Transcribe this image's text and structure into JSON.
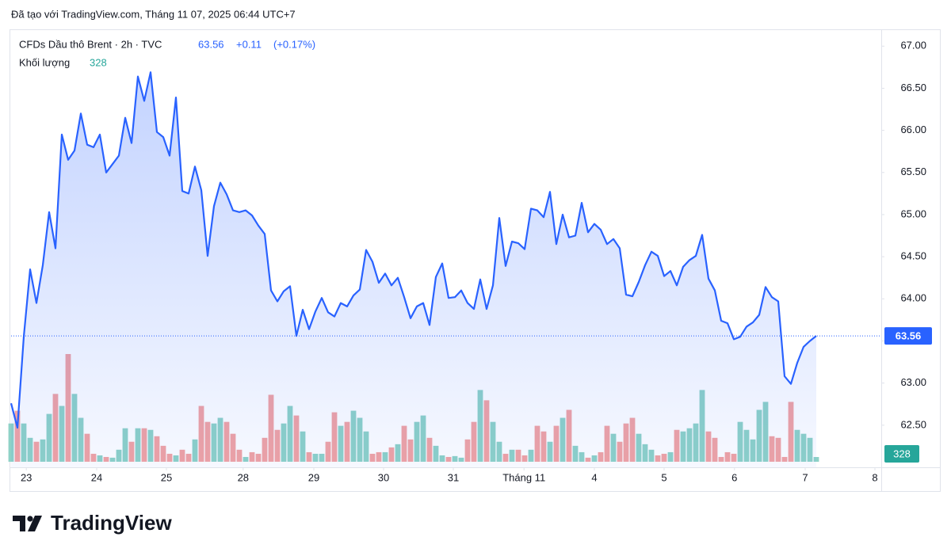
{
  "header": {
    "created": "Đã tạo với TradingView.com, Tháng 11 07, 2025 06:44 UTC+7",
    "change": "+0.11",
    "change_pct": "(+0.17%)"
  },
  "logo": "TradingView",
  "chart_data": {
    "type": "line",
    "x": [
      0,
      1,
      2,
      3,
      4,
      5,
      6,
      7,
      8,
      9,
      10,
      11,
      12,
      13,
      14,
      15,
      16,
      17,
      18,
      19,
      20,
      21,
      22,
      23,
      24,
      25,
      26,
      27,
      28,
      29,
      30,
      31,
      32,
      33,
      34,
      35,
      36,
      37,
      38,
      39,
      40,
      41,
      42,
      43,
      44,
      45,
      46,
      47,
      48,
      49,
      50,
      51,
      52,
      53,
      54,
      55,
      56,
      57,
      58,
      59,
      60,
      61,
      62,
      63,
      64,
      65,
      66,
      67,
      68,
      69,
      70,
      71,
      72,
      73,
      74,
      75,
      76,
      77,
      78,
      79,
      80,
      81,
      82,
      83,
      84,
      85,
      86,
      87,
      88,
      89,
      90,
      91,
      92,
      93,
      94,
      95,
      96,
      97,
      98,
      99,
      100,
      101,
      102,
      103,
      104,
      105,
      106,
      107,
      108,
      109,
      110,
      111,
      112,
      113,
      114,
      115,
      116,
      117,
      118,
      119,
      120,
      121,
      122,
      123,
      124,
      125,
      126,
      127
    ],
    "series": [
      {
        "name": "CFDs Dầu thô Brent · 2h · TVC",
        "color": "#2962ff",
        "values": [
          62.76,
          62.47,
          63.55,
          64.35,
          63.95,
          64.4,
          65.03,
          64.6,
          65.95,
          65.65,
          65.76,
          66.2,
          65.83,
          65.8,
          65.95,
          65.5,
          65.6,
          65.7,
          66.15,
          65.85,
          66.64,
          66.35,
          66.69,
          65.98,
          65.92,
          65.7,
          66.39,
          65.28,
          65.25,
          65.57,
          65.29,
          64.51,
          65.1,
          65.38,
          65.24,
          65.05,
          65.03,
          65.05,
          64.99,
          64.87,
          64.77,
          64.1,
          63.97,
          64.09,
          64.15,
          63.56,
          63.87,
          63.64,
          63.85,
          64.01,
          63.84,
          63.79,
          63.95,
          63.91,
          64.04,
          64.11,
          64.58,
          64.44,
          64.19,
          64.3,
          64.16,
          64.25,
          64.02,
          63.77,
          63.91,
          63.95,
          63.69,
          64.26,
          64.42,
          64.01,
          64.02,
          64.1,
          63.95,
          63.88,
          64.23,
          63.88,
          64.16,
          64.96,
          64.39,
          64.68,
          64.66,
          64.59,
          65.07,
          65.05,
          64.97,
          65.27,
          64.65,
          65.0,
          64.73,
          64.75,
          65.14,
          64.79,
          64.89,
          64.82,
          64.65,
          64.71,
          64.6,
          64.05,
          64.03,
          64.2,
          64.4,
          64.56,
          64.51,
          64.27,
          64.33,
          64.16,
          64.38,
          64.46,
          64.51,
          64.76,
          64.24,
          64.1,
          63.74,
          63.71,
          63.52,
          63.55,
          63.67,
          63.72,
          63.81,
          64.14,
          64.02,
          63.97,
          63.08,
          62.99,
          63.24,
          63.43,
          63.5,
          63.56
        ]
      },
      {
        "name": "Khối lượng",
        "up_color": "#8ed2c7",
        "down_color": "#f2a3a3",
        "label_color": "#26a69a",
        "values": [
          2640,
          3520,
          2640,
          1650,
          1380,
          1540,
          3300,
          4680,
          3850,
          7430,
          4680,
          3030,
          1930,
          550,
          440,
          330,
          280,
          830,
          2310,
          1380,
          2310,
          2310,
          2200,
          1760,
          1100,
          550,
          440,
          830,
          550,
          1540,
          3850,
          2750,
          2640,
          3030,
          2750,
          1930,
          830,
          330,
          660,
          550,
          1650,
          4620,
          2200,
          2640,
          3850,
          3190,
          2090,
          660,
          550,
          550,
          1380,
          3410,
          2480,
          2750,
          3520,
          3030,
          2090,
          550,
          660,
          660,
          990,
          1210,
          2480,
          1540,
          2750,
          3190,
          1650,
          1100,
          440,
          330,
          390,
          280,
          1540,
          2750,
          4950,
          4240,
          2750,
          1380,
          550,
          830,
          830,
          440,
          830,
          2480,
          2090,
          1380,
          2480,
          3030,
          3580,
          1100,
          660,
          280,
          440,
          660,
          2480,
          1930,
          1380,
          2640,
          3030,
          1930,
          1210,
          830,
          440,
          550,
          660,
          2200,
          2090,
          2310,
          2640,
          4950,
          2090,
          1650,
          330,
          660,
          550,
          2750,
          2200,
          1540,
          3580,
          4130,
          1760,
          1650,
          330,
          4130,
          2200,
          1930,
          1650,
          328
        ]
      }
    ],
    "xlim": [
      0,
      137.25
    ],
    "xticks": [
      {
        "value": 2.4,
        "label": "23"
      },
      {
        "value": 13.5,
        "label": "24"
      },
      {
        "value": 24.5,
        "label": "25"
      },
      {
        "value": 36.6,
        "label": "28"
      },
      {
        "value": 47.75,
        "label": "29"
      },
      {
        "value": 58.75,
        "label": "30"
      },
      {
        "value": 69.75,
        "label": "31"
      },
      {
        "value": 80.9,
        "label": "Tháng 11"
      },
      {
        "value": 92,
        "label": "4"
      },
      {
        "value": 103,
        "label": "5"
      },
      {
        "value": 114.1,
        "label": "6"
      },
      {
        "value": 125.25,
        "label": "7"
      },
      {
        "value": 136.25,
        "label": "8"
      }
    ],
    "ylim": [
      62.0,
      67.2
    ],
    "yticks": [
      {
        "value": 62.5,
        "label": "62.50"
      },
      {
        "value": 63,
        "label": "63.00"
      },
      {
        "value": 63.5,
        "label": "63.50"
      },
      {
        "value": 64,
        "label": "64.00"
      },
      {
        "value": 64.5,
        "label": "64.50"
      },
      {
        "value": 65,
        "label": "65.00"
      },
      {
        "value": 65.5,
        "label": "65.50"
      },
      {
        "value": 66,
        "label": "66.00"
      },
      {
        "value": 66.5,
        "label": "66.50"
      },
      {
        "value": 67,
        "label": "67.00"
      }
    ],
    "grid": false
  }
}
